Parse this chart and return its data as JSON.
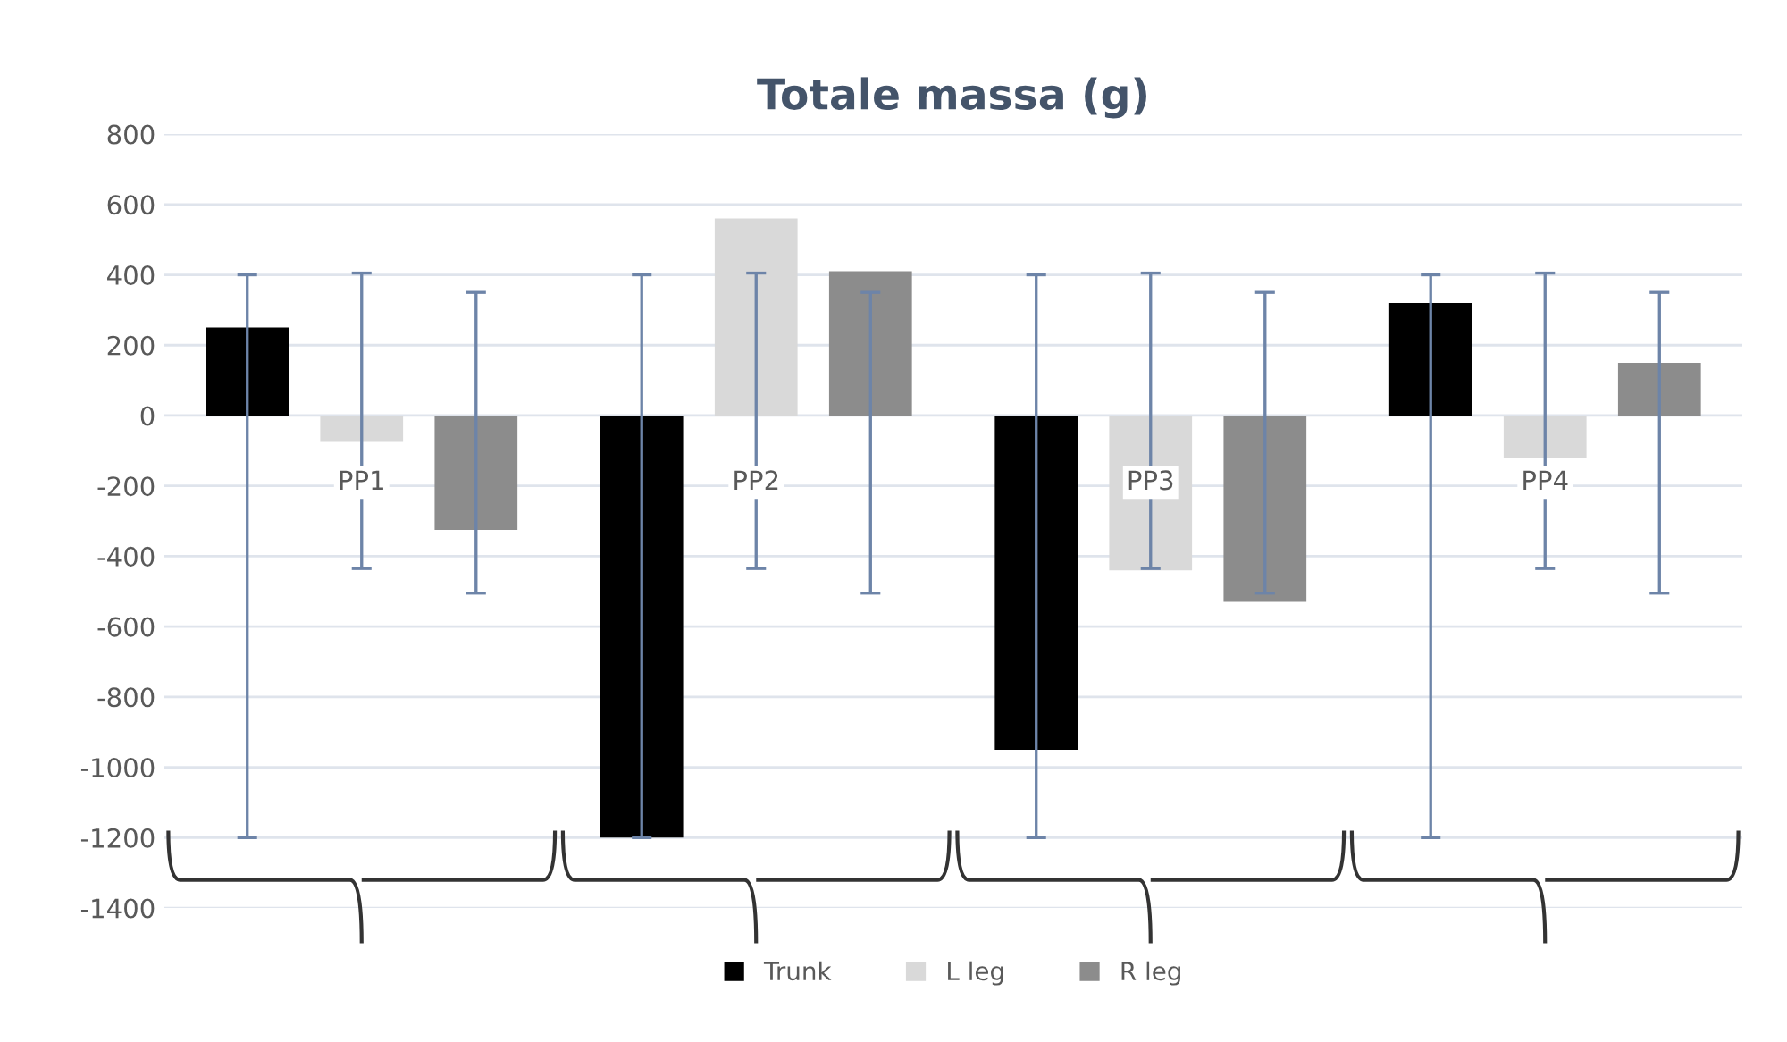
{
  "chart_data": {
    "type": "bar",
    "title": "Totale massa (g)",
    "categories": [
      "PP1",
      "PP2",
      "PP3",
      "PP4"
    ],
    "series": [
      {
        "name": "Trunk",
        "color": "#000000",
        "values": [
          250,
          -1200,
          -950,
          320
        ],
        "errors": [
          [
            -1200,
            400
          ],
          [
            -1200,
            400
          ],
          [
            -1200,
            400
          ],
          [
            -1200,
            400
          ]
        ]
      },
      {
        "name": "L leg",
        "color": "#d9d9d9",
        "values": [
          -75,
          560,
          -440,
          -120
        ],
        "errors": [
          [
            -435,
            405
          ],
          [
            -435,
            405
          ],
          [
            -435,
            405
          ],
          [
            -435,
            405
          ]
        ]
      },
      {
        "name": "R leg",
        "color": "#8c8c8c",
        "values": [
          -325,
          410,
          -530,
          150
        ],
        "errors": [
          [
            -505,
            350
          ],
          [
            -505,
            350
          ],
          [
            -505,
            350
          ],
          [
            -505,
            350
          ]
        ]
      }
    ],
    "ylim": [
      -1400,
      800
    ],
    "yticks": [
      -1400,
      -1200,
      -1000,
      -800,
      -600,
      -400,
      -200,
      0,
      200,
      400,
      600,
      800
    ],
    "grid": "y",
    "legend": "bottom"
  }
}
